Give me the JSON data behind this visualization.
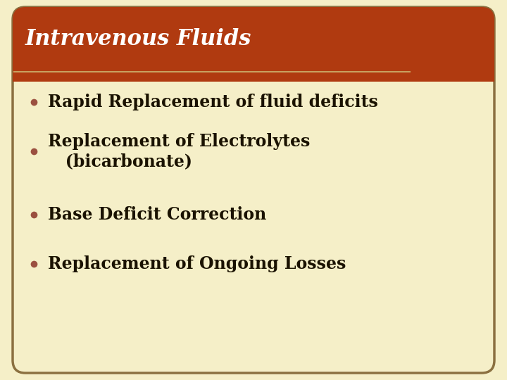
{
  "title": "Intravenous Fluids",
  "title_bg_color": "#B03A10",
  "title_text_color": "#FFFFFF",
  "body_bg_color": "#F5EFC8",
  "border_color": "#8B7040",
  "outer_bg_color": "#F5EFC8",
  "bullet_color": "#9B5040",
  "bullet_text_color": "#1A1200",
  "bullet_points": [
    "Rapid Replacement of fluid deficits",
    "Replacement of Electrolytes\n   (bicarbonate)",
    "Base Deficit Correction",
    "Replacement of Ongoing Losses"
  ],
  "title_fontsize": 22,
  "bullet_fontsize": 17,
  "separator_color": "#C8A060",
  "fig_width": 7.2,
  "fig_height": 5.4,
  "dpi": 100
}
